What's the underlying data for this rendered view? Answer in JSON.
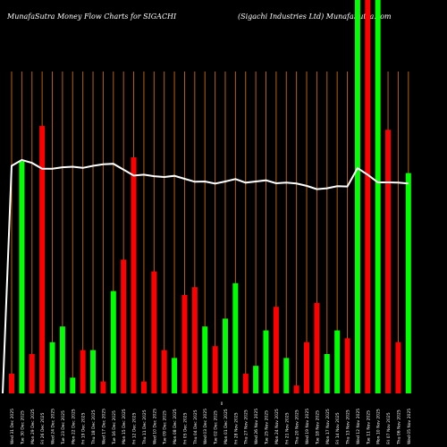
{
  "chart_data": {
    "type": "bar",
    "title_left": "MunafaSutra  Money Flow  Charts for SIGACHI",
    "title_right": "(Sigachi   Industries Ltd) MunafaSutra.com",
    "mid_label": "0",
    "ylim": [
      0,
      100
    ],
    "colors": {
      "up": "#00ff00",
      "down": "#ff0000",
      "grid": "#b8620a",
      "line": "#ffffff",
      "bg": "#000000"
    },
    "bars": [
      {
        "label": "Wed 31 Dec 2025",
        "value": 5,
        "color": "down"
      },
      {
        "label": "Tue 30 Dec 2025",
        "value": 59,
        "color": "up"
      },
      {
        "label": "Mon 29 Dec 2025",
        "value": 10,
        "color": "down"
      },
      {
        "label": "Fri 26 Dec 2025",
        "value": 68,
        "color": "down"
      },
      {
        "label": "Wed 24 Dec 2025",
        "value": 13,
        "color": "up"
      },
      {
        "label": "Tue 23 Dec 2025",
        "value": 17,
        "color": "up"
      },
      {
        "label": "Mon 22 Dec 2025",
        "value": 4,
        "color": "up"
      },
      {
        "label": "Fri 19 Dec 2025",
        "value": 11,
        "color": "down"
      },
      {
        "label": "Thu 18 Dec 2025",
        "value": 11,
        "color": "up"
      },
      {
        "label": "Wed 17 Dec 2025",
        "value": 3,
        "color": "down"
      },
      {
        "label": "Tue 16 Dec 2025",
        "value": 26,
        "color": "up"
      },
      {
        "label": "Mon 15 Dec 2025",
        "value": 34,
        "color": "down"
      },
      {
        "label": "Fri 12 Dec 2025",
        "value": 60,
        "color": "down"
      },
      {
        "label": "Thu 11 Dec 2025",
        "value": 3,
        "color": "down"
      },
      {
        "label": "Wed 10 Dec 2025",
        "value": 31,
        "color": "down"
      },
      {
        "label": "Tue 09 Dec 2025",
        "value": 11,
        "color": "down"
      },
      {
        "label": "Mon 08 Dec 2025",
        "value": 9,
        "color": "up"
      },
      {
        "label": "Fri 05 Dec 2025",
        "value": 25,
        "color": "down"
      },
      {
        "label": "Thu 04 Dec 2025",
        "value": 27,
        "color": "down"
      },
      {
        "label": "Wed 03 Dec 2025",
        "value": 17,
        "color": "up"
      },
      {
        "label": "Tue 02 Dec 2025",
        "value": 12,
        "color": "down"
      },
      {
        "label": "Mon 01 Dec 2025",
        "value": 19,
        "color": "up"
      },
      {
        "label": "Fri 28 Nov 2025",
        "value": 28,
        "color": "up"
      },
      {
        "label": "Thu 27 Nov 2025",
        "value": 5,
        "color": "down"
      },
      {
        "label": "Wed 26 Nov 2025",
        "value": 7,
        "color": "up"
      },
      {
        "label": "Tue 25 Nov 2025",
        "value": 16,
        "color": "up"
      },
      {
        "label": "Mon 24 Nov 2025",
        "value": 22,
        "color": "down"
      },
      {
        "label": "Fri 21 Nov 2025",
        "value": 9,
        "color": "up"
      },
      {
        "label": "Thu 20 Nov 2025",
        "value": 2,
        "color": "down"
      },
      {
        "label": "Wed 19 Nov 2025",
        "value": 13,
        "color": "down"
      },
      {
        "label": "Tue 18 Nov 2025",
        "value": 23,
        "color": "down"
      },
      {
        "label": "Mon 17 Nov 2025",
        "value": 10,
        "color": "up"
      },
      {
        "label": "Fri 14 Nov 2025",
        "value": 16,
        "color": "up"
      },
      {
        "label": "Thu 13 Nov 2025",
        "value": 14,
        "color": "down"
      },
      {
        "label": "Wed 12 Nov 2025",
        "value": 100,
        "color": "up"
      },
      {
        "label": "Tue 11 Nov 2025",
        "value": 100,
        "color": "down"
      },
      {
        "label": "Mon 10 Nov 2025",
        "value": 100,
        "color": "up"
      },
      {
        "label": "Fri 07 Nov 2025",
        "value": 67,
        "color": "down"
      },
      {
        "label": "Thu 06 Nov 2025",
        "value": 13,
        "color": "down"
      },
      {
        "label": "Wed 05 Nov 2025",
        "value": 56,
        "color": "up"
      }
    ],
    "line": [
      65,
      67,
      66,
      64,
      64,
      64.5,
      64.7,
      64.3,
      65,
      65.5,
      65.7,
      63.7,
      61.7,
      62,
      61.5,
      61.2,
      61.6,
      60.6,
      59.6,
      59.7,
      59,
      59.7,
      60.5,
      59.3,
      59.7,
      60.1,
      59.1,
      59.3,
      59,
      58.2,
      57.1,
      57.4,
      58.1,
      58,
      64.2,
      62,
      59.4,
      59.4,
      59.3,
      59
    ]
  }
}
